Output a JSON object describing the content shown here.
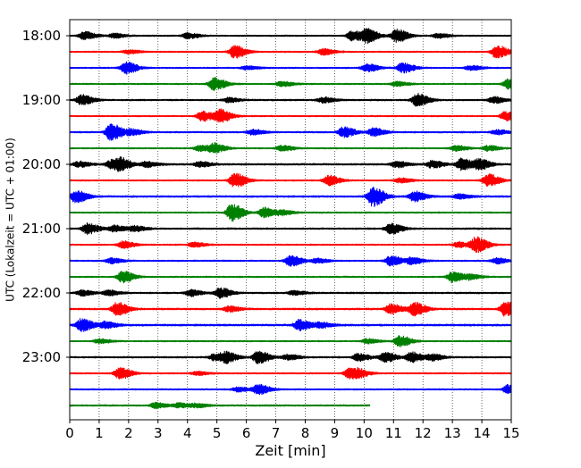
{
  "chart_data": {
    "type": "line",
    "chart_kind": "helicorder",
    "xlabel": "Zeit  [min]",
    "ylabel": "UTC (Lokalzeit = UTC + 01:00)",
    "xlim": [
      0,
      15
    ],
    "x_ticks": [
      0,
      1,
      2,
      3,
      4,
      5,
      6,
      7,
      8,
      9,
      10,
      11,
      12,
      13,
      14,
      15
    ],
    "hour_labels": [
      "18:00",
      "19:00",
      "20:00",
      "21:00",
      "22:00",
      "23:00"
    ],
    "grid": "vertical dotted at each minute",
    "trace_colors": [
      "#000000",
      "#ff0000",
      "#0000ff",
      "#008000"
    ],
    "trace_start_time": "18:00",
    "trace_minutes_per_line": 15,
    "series": [
      {
        "start": "18:00",
        "color": "#000000",
        "noise": 0.8,
        "end_min": 15,
        "events": [
          [
            0.5,
            4.5
          ],
          [
            1.5,
            2.5
          ],
          [
            4,
            3
          ],
          [
            9.6,
            5.5
          ],
          [
            10.1,
            7
          ],
          [
            11.1,
            7
          ],
          [
            12.5,
            2.5
          ]
        ]
      },
      {
        "start": "18:15",
        "color": "#ff0000",
        "noise": 0.8,
        "end_min": 15,
        "events": [
          [
            5.6,
            7
          ],
          [
            8.6,
            3.5
          ],
          [
            14.5,
            7
          ],
          [
            2,
            2
          ]
        ]
      },
      {
        "start": "18:30",
        "color": "#0000ff",
        "noise": 0.8,
        "end_min": 15,
        "events": [
          [
            1.9,
            6.5
          ],
          [
            10.1,
            4.5
          ],
          [
            11.3,
            5.5
          ],
          [
            13.6,
            2.5
          ],
          [
            6,
            2
          ]
        ]
      },
      {
        "start": "18:45",
        "color": "#008000",
        "noise": 0.8,
        "end_min": 15,
        "events": [
          [
            4.9,
            7
          ],
          [
            7.2,
            3
          ],
          [
            11.1,
            2.5
          ],
          [
            14.9,
            5.5
          ]
        ]
      },
      {
        "start": "19:00",
        "color": "#000000",
        "noise": 0.9,
        "end_min": 15,
        "events": [
          [
            0.4,
            5.5
          ],
          [
            5.4,
            2.5
          ],
          [
            8.6,
            3
          ],
          [
            11.8,
            7
          ],
          [
            14.4,
            3.5
          ]
        ]
      },
      {
        "start": "19:15",
        "color": "#ff0000",
        "noise": 0.8,
        "end_min": 15,
        "events": [
          [
            4.5,
            5.5
          ],
          [
            5.1,
            7
          ],
          [
            14.8,
            5
          ]
        ]
      },
      {
        "start": "19:30",
        "color": "#0000ff",
        "noise": 0.9,
        "end_min": 15,
        "events": [
          [
            1.4,
            9.5
          ],
          [
            2.1,
            3
          ],
          [
            6.2,
            3
          ],
          [
            9.3,
            5.5
          ],
          [
            10.3,
            4.5
          ],
          [
            14.5,
            2.5
          ]
        ]
      },
      {
        "start": "19:45",
        "color": "#008000",
        "noise": 0.8,
        "end_min": 15,
        "events": [
          [
            4.4,
            3
          ],
          [
            4.9,
            5
          ],
          [
            7.2,
            3
          ],
          [
            13.1,
            3
          ],
          [
            14.2,
            3
          ]
        ]
      },
      {
        "start": "20:00",
        "color": "#000000",
        "noise": 1.0,
        "end_min": 15,
        "events": [
          [
            0.3,
            3
          ],
          [
            1.4,
            4.5
          ],
          [
            1.7,
            5.5
          ],
          [
            2.6,
            3
          ],
          [
            4.4,
            3
          ],
          [
            11.1,
            3.5
          ],
          [
            12.3,
            4
          ],
          [
            13.3,
            6.5
          ],
          [
            13.9,
            5.5
          ]
        ]
      },
      {
        "start": "20:15",
        "color": "#ff0000",
        "noise": 0.8,
        "end_min": 15,
        "events": [
          [
            5.6,
            8
          ],
          [
            8.8,
            5.5
          ],
          [
            11.2,
            2.5
          ],
          [
            14.2,
            7
          ]
        ]
      },
      {
        "start": "20:30",
        "color": "#0000ff",
        "noise": 1.0,
        "end_min": 15,
        "events": [
          [
            0.2,
            6.5
          ],
          [
            10.3,
            11
          ],
          [
            11.7,
            5.5
          ],
          [
            13.2,
            2.5
          ]
        ]
      },
      {
        "start": "20:45",
        "color": "#008000",
        "noise": 0.8,
        "end_min": 15,
        "events": [
          [
            5.5,
            9.5
          ],
          [
            6.6,
            5.5
          ],
          [
            7.2,
            2.5
          ]
        ]
      },
      {
        "start": "21:00",
        "color": "#000000",
        "noise": 0.9,
        "end_min": 15,
        "events": [
          [
            0.6,
            6
          ],
          [
            1.5,
            3.5
          ],
          [
            2.2,
            3
          ],
          [
            10.9,
            6
          ]
        ]
      },
      {
        "start": "21:15",
        "color": "#ff0000",
        "noise": 0.8,
        "end_min": 15,
        "events": [
          [
            1.8,
            4
          ],
          [
            4.2,
            2.5
          ],
          [
            13.8,
            8.5
          ],
          [
            13.2,
            3
          ]
        ]
      },
      {
        "start": "21:30",
        "color": "#0000ff",
        "noise": 0.8,
        "end_min": 15,
        "events": [
          [
            1.4,
            3
          ],
          [
            7.5,
            6
          ],
          [
            8.4,
            2.5
          ],
          [
            10.9,
            5.5
          ],
          [
            11.6,
            3.5
          ],
          [
            14.5,
            3
          ]
        ]
      },
      {
        "start": "21:45",
        "color": "#008000",
        "noise": 0.8,
        "end_min": 15,
        "events": [
          [
            1.8,
            6.5
          ],
          [
            13,
            6
          ],
          [
            13.6,
            2.5
          ]
        ]
      },
      {
        "start": "22:00",
        "color": "#000000",
        "noise": 0.9,
        "end_min": 15,
        "events": [
          [
            0.4,
            3
          ],
          [
            1.3,
            3
          ],
          [
            4.1,
            3.5
          ],
          [
            5.1,
            5.5
          ],
          [
            7.6,
            2.5
          ]
        ]
      },
      {
        "start": "22:15",
        "color": "#ff0000",
        "noise": 1.0,
        "end_min": 15,
        "events": [
          [
            1.6,
            7
          ],
          [
            5.4,
            3
          ],
          [
            10.9,
            5.5
          ],
          [
            11.7,
            7
          ],
          [
            14.8,
            8
          ]
        ]
      },
      {
        "start": "22:30",
        "color": "#0000ff",
        "noise": 1.1,
        "end_min": 15,
        "events": [
          [
            0.4,
            7
          ],
          [
            1.2,
            3.5
          ],
          [
            7.8,
            6
          ],
          [
            8.5,
            3
          ]
        ]
      },
      {
        "start": "22:45",
        "color": "#008000",
        "noise": 0.8,
        "end_min": 15,
        "events": [
          [
            1,
            2.5
          ],
          [
            11.2,
            6
          ],
          [
            10.1,
            2.5
          ]
        ]
      },
      {
        "start": "23:00",
        "color": "#000000",
        "noise": 0.9,
        "end_min": 15,
        "events": [
          [
            4.9,
            3.5
          ],
          [
            5.3,
            5.5
          ],
          [
            6.4,
            7
          ],
          [
            7.4,
            3
          ],
          [
            9.8,
            4
          ],
          [
            10.7,
            5.5
          ],
          [
            11.6,
            5.5
          ],
          [
            12.3,
            3.5
          ]
        ]
      },
      {
        "start": "23:15",
        "color": "#ff0000",
        "noise": 0.8,
        "end_min": 15,
        "events": [
          [
            1.7,
            6.5
          ],
          [
            9.5,
            5.5
          ],
          [
            9.8,
            3
          ],
          [
            4.3,
            2
          ]
        ]
      },
      {
        "start": "23:30",
        "color": "#0000ff",
        "noise": 0.8,
        "end_min": 15,
        "events": [
          [
            6.4,
            5.5
          ],
          [
            5.7,
            2.5
          ],
          [
            14.9,
            5
          ]
        ]
      },
      {
        "start": "23:45",
        "color": "#008000",
        "noise": 0.9,
        "end_min": 10.2,
        "events": [
          [
            2.9,
            3
          ],
          [
            3.7,
            2.5
          ],
          [
            4.3,
            2
          ]
        ]
      }
    ]
  }
}
